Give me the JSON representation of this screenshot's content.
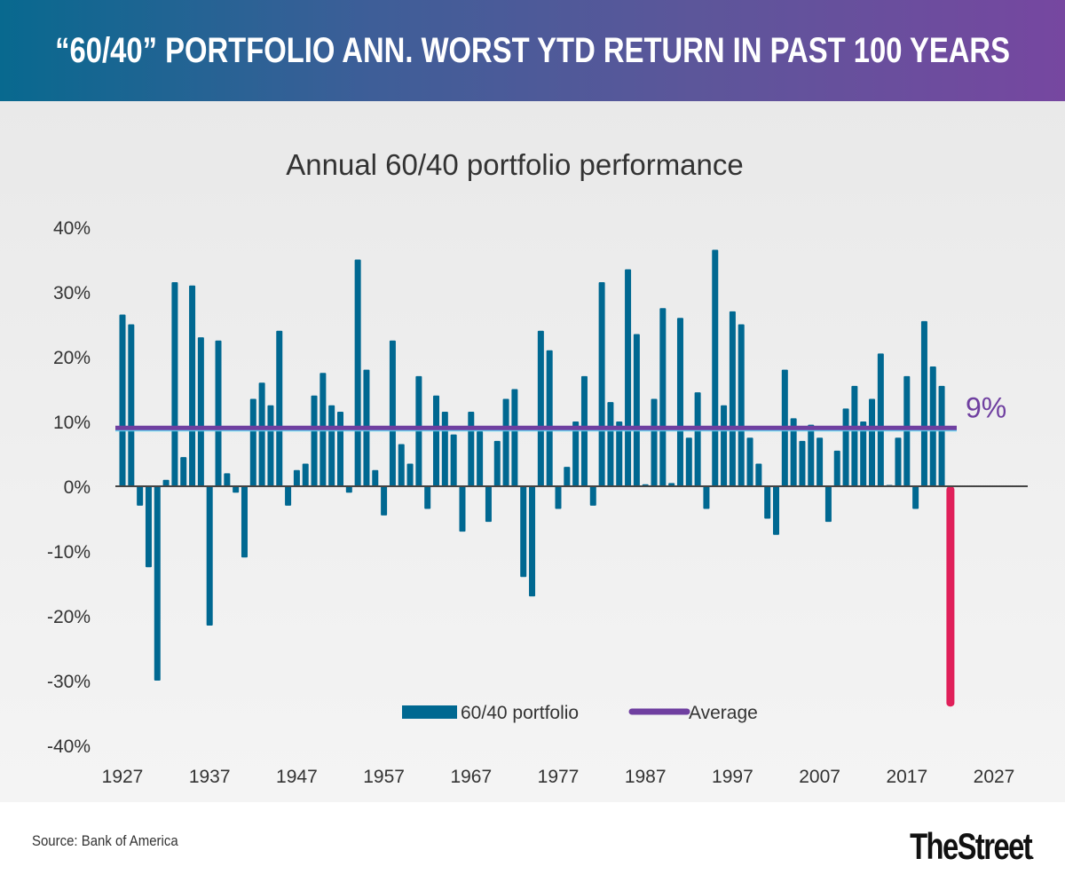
{
  "banner": {
    "title": "“60/40” PORTFOLIO ANN. WORST YTD RETURN IN PAST 100 YEARS"
  },
  "footer": {
    "source": "Source: Bank of America",
    "logo": "TheStreet",
    "logo_dot": "."
  },
  "colors": {
    "bar": "#006891",
    "highlight": "#e0205a",
    "average": "#6f3fa0",
    "average_glow": "#5fd0ee",
    "zero_line": "#444444"
  },
  "chart_data": {
    "type": "bar",
    "title": "Annual 60/40 portfolio performance",
    "xlabel": "",
    "ylabel": "",
    "ylim": [
      -40,
      40
    ],
    "yticks": [
      40,
      30,
      20,
      10,
      0,
      -10,
      -20,
      -30,
      -40
    ],
    "ytick_labels": [
      "40%",
      "30%",
      "20%",
      "10%",
      "0%",
      "-10%",
      "-20%",
      "-30%",
      "-40%"
    ],
    "xlim": [
      1927,
      2027
    ],
    "xticks": [
      1927,
      1937,
      1947,
      1957,
      1967,
      1977,
      1987,
      1997,
      2007,
      2017,
      2027
    ],
    "xtick_labels": [
      "1927",
      "1937",
      "1947",
      "1957",
      "1967",
      "1977",
      "1987",
      "1997",
      "2007",
      "2017",
      "2027"
    ],
    "legend": {
      "position": "bottom-center",
      "entries": [
        "60/40 portfolio",
        "Average"
      ]
    },
    "average": {
      "value": 9,
      "label": "9%"
    },
    "highlight_year": 2022,
    "series": [
      {
        "name": "60/40 portfolio",
        "x": [
          1927,
          1928,
          1929,
          1930,
          1931,
          1932,
          1933,
          1934,
          1935,
          1936,
          1937,
          1938,
          1939,
          1940,
          1941,
          1942,
          1943,
          1944,
          1945,
          1946,
          1947,
          1948,
          1949,
          1950,
          1951,
          1952,
          1953,
          1954,
          1955,
          1956,
          1957,
          1958,
          1959,
          1960,
          1961,
          1962,
          1963,
          1964,
          1965,
          1966,
          1967,
          1968,
          1969,
          1970,
          1971,
          1972,
          1973,
          1974,
          1975,
          1976,
          1977,
          1978,
          1979,
          1980,
          1981,
          1982,
          1983,
          1984,
          1985,
          1986,
          1987,
          1988,
          1989,
          1990,
          1991,
          1992,
          1993,
          1994,
          1995,
          1996,
          1997,
          1998,
          1999,
          2000,
          2001,
          2002,
          2003,
          2004,
          2005,
          2006,
          2007,
          2008,
          2009,
          2010,
          2011,
          2012,
          2013,
          2014,
          2015,
          2016,
          2017,
          2018,
          2019,
          2020,
          2021,
          2022
        ],
        "values": [
          26.5,
          25,
          -3,
          -12.5,
          -30,
          1,
          31.5,
          4.5,
          31,
          23,
          -21.5,
          22.5,
          2,
          -1,
          -11,
          13.5,
          16,
          12.5,
          24,
          -3,
          2.5,
          3.5,
          14,
          17.5,
          12.5,
          11.5,
          -1,
          35,
          18,
          2.5,
          -4.5,
          22.5,
          6.5,
          3.5,
          17,
          -3.5,
          14,
          11.5,
          8,
          -7,
          11.5,
          8.5,
          -5.5,
          7,
          13.5,
          15,
          -14,
          -17,
          24,
          21,
          -3.5,
          3,
          10,
          17,
          -3,
          31.5,
          13,
          10,
          33.5,
          23.5,
          0.3,
          13.5,
          27.5,
          0.5,
          26,
          7.5,
          14.5,
          -3.5,
          36.5,
          12.5,
          27,
          25,
          7.5,
          3.5,
          -5,
          -7.5,
          18,
          10.5,
          7,
          9.5,
          7.5,
          -5.5,
          5.5,
          12,
          15.5,
          10,
          13.5,
          20.5,
          0.2,
          7.5,
          17,
          -3.5,
          25.5,
          18.5,
          15.5,
          -34
        ]
      }
    ]
  }
}
